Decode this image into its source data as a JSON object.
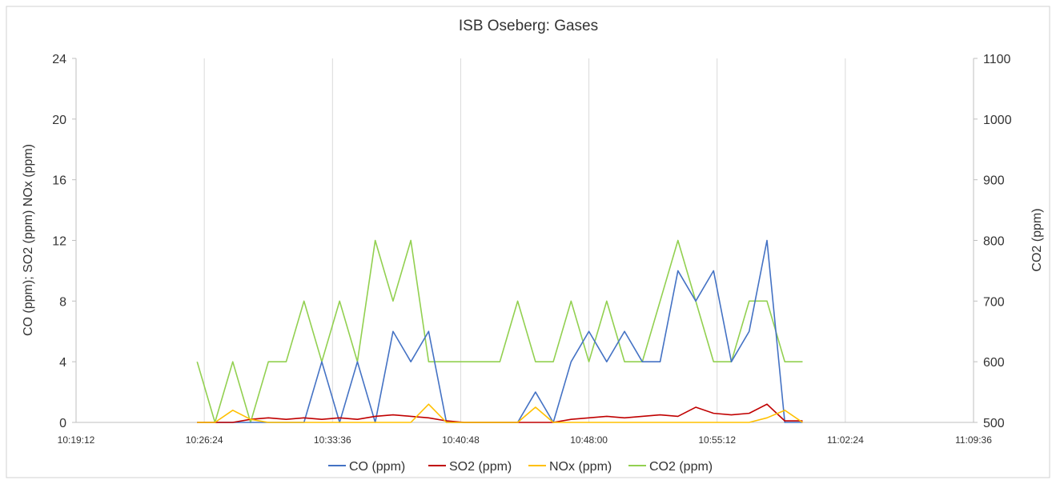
{
  "chart_data": {
    "type": "line",
    "title": "ISB Oseberg: Gases",
    "ylabel": "CO (ppm); SO2 (ppm) NOx (ppm)",
    "y2label": "CO2 (ppm)",
    "x": [
      "10:26:00",
      "10:27:00",
      "10:28:00",
      "10:29:00",
      "10:30:00",
      "10:31:00",
      "10:32:00",
      "10:33:00",
      "10:34:00",
      "10:35:00",
      "10:36:00",
      "10:37:00",
      "10:38:00",
      "10:39:00",
      "10:40:00",
      "10:41:00",
      "10:42:00",
      "10:43:00",
      "10:44:00",
      "10:45:00",
      "10:46:00",
      "10:47:00",
      "10:48:00",
      "10:49:00",
      "10:50:00",
      "10:51:00",
      "10:52:00",
      "10:53:00",
      "10:54:00",
      "10:55:00",
      "10:56:00",
      "10:57:00",
      "10:58:00",
      "10:59:00",
      "11:00:00"
    ],
    "xlim": [
      "10:19:12",
      "11:09:36"
    ],
    "xticks": [
      "10:19:12",
      "10:26:24",
      "10:33:36",
      "10:40:48",
      "10:48:00",
      "10:55:12",
      "11:02:24",
      "11:09:36"
    ],
    "ylim": [
      0,
      24
    ],
    "yticks": [
      0,
      4,
      8,
      12,
      16,
      20,
      24
    ],
    "y2lim": [
      500,
      1100
    ],
    "y2ticks": [
      500,
      600,
      700,
      800,
      900,
      1000,
      1100
    ],
    "grid": "x",
    "legend": "bottom",
    "series": [
      {
        "name": "CO (ppm)",
        "color": "#4472c4",
        "values": [
          0,
          0,
          0,
          0,
          0,
          0,
          0,
          4,
          0,
          4,
          0,
          6,
          4,
          6,
          0,
          0,
          0,
          0,
          0,
          2,
          0,
          4,
          6,
          4,
          6,
          4,
          4,
          10,
          8,
          10,
          4,
          6,
          12,
          0,
          0
        ]
      },
      {
        "name": "SO2 (ppm)",
        "color": "#c00000",
        "values": [
          0,
          0,
          0,
          0.2,
          0.3,
          0.2,
          0.3,
          0.2,
          0.3,
          0.2,
          0.4,
          0.5,
          0.4,
          0.3,
          0.1,
          0,
          0,
          0,
          0,
          0,
          0,
          0.2,
          0.3,
          0.4,
          0.3,
          0.4,
          0.5,
          0.4,
          1.0,
          0.6,
          0.5,
          0.6,
          1.2,
          0.1,
          0.1
        ]
      },
      {
        "name": "NOx (ppm)",
        "color": "#ffc000",
        "values": [
          0,
          0,
          0.8,
          0.2,
          0,
          0,
          0,
          0,
          0,
          0,
          0,
          0,
          0,
          1.2,
          0,
          0,
          0,
          0,
          0,
          1.0,
          0,
          0,
          0,
          0,
          0,
          0,
          0,
          0,
          0,
          0,
          0,
          0,
          0.3,
          0.8,
          0
        ]
      },
      {
        "name": "CO2 (ppm)",
        "color": "#92d050",
        "axis": "y2",
        "values": [
          600,
          500,
          600,
          500,
          600,
          600,
          700,
          600,
          700,
          600,
          800,
          700,
          800,
          600,
          600,
          600,
          600,
          600,
          700,
          600,
          600,
          700,
          600,
          700,
          600,
          600,
          700,
          800,
          700,
          600,
          600,
          700,
          700,
          600,
          600
        ]
      }
    ]
  }
}
